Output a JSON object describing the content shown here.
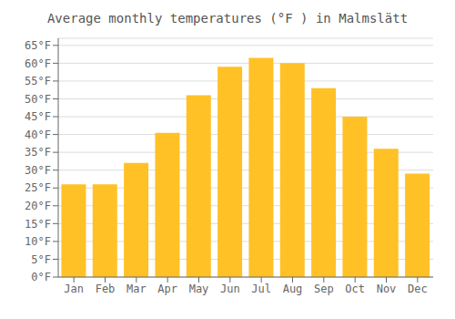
{
  "chart_data": {
    "type": "bar",
    "title": "Average monthly temperatures (°F ) in Malmslätt",
    "categories": [
      "Jan",
      "Feb",
      "Mar",
      "Apr",
      "May",
      "Jun",
      "Jul",
      "Aug",
      "Sep",
      "Oct",
      "Nov",
      "Dec"
    ],
    "values": [
      26,
      26,
      32,
      40.5,
      51,
      59,
      61.5,
      60,
      53,
      45,
      36,
      29
    ],
    "color": "#FFC125",
    "ylim": [
      0,
      67
    ],
    "yticks": [
      {
        "value": 0,
        "label": "0°F"
      },
      {
        "value": 5,
        "label": "5°F"
      },
      {
        "value": 10,
        "label": "10°F"
      },
      {
        "value": 15,
        "label": "15°F"
      },
      {
        "value": 20,
        "label": "20°F"
      },
      {
        "value": 25,
        "label": "25°F"
      },
      {
        "value": 30,
        "label": "30°F"
      },
      {
        "value": 35,
        "label": "35°F"
      },
      {
        "value": 40,
        "label": "40°F"
      },
      {
        "value": 45,
        "label": "45°F"
      },
      {
        "value": 50,
        "label": "50°F"
      },
      {
        "value": 55,
        "label": "55°F"
      },
      {
        "value": 60,
        "label": "60°F"
      },
      {
        "value": 65,
        "label": "65°F"
      }
    ],
    "grid": true
  }
}
